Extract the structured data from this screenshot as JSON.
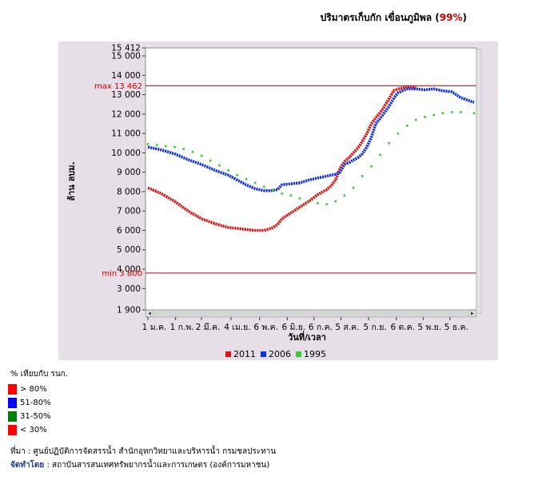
{
  "header": {
    "title_prefix": "ปริมาตรเก็บกัก เขื่อนภูมิพล (",
    "percent": "99%",
    "title_suffix": ")"
  },
  "chart_data": {
    "type": "line",
    "xlabel": "วันที่/เวลา",
    "ylabel": "ล้าน ลบม.",
    "ylim": [
      1900,
      15412
    ],
    "ytick_labels": [
      "15 412",
      "15 000",
      "14 000",
      "13 000",
      "12 000",
      "11 000",
      "10 000",
      "9 000",
      "8 000",
      "7 000",
      "6 000",
      "5 000",
      "4 000",
      "3 000",
      "1 900"
    ],
    "ytick_values": [
      15412,
      15000,
      14000,
      13000,
      12000,
      11000,
      10000,
      9000,
      8000,
      7000,
      6000,
      5000,
      4000,
      3000,
      1900
    ],
    "x_domain": [
      0,
      365
    ],
    "xtick_labels": [
      "1 ม.ค.",
      "1 ก.พ.",
      "2 มี.ค.",
      "4 เม.ย.",
      "6 พ.ค.",
      "6 มิ.ย.",
      "6 ก.ค.",
      "5 ส.ค.",
      "5 ก.ย.",
      "6 ต.ค.",
      "5 พ.ย.",
      "5 ธ.ค."
    ],
    "xtick_values": [
      0,
      31,
      60,
      93,
      125,
      156,
      186,
      216,
      247,
      278,
      308,
      338
    ],
    "reference_lines": [
      {
        "label": "max 13 462",
        "value": 13462,
        "color": "#cc0000"
      },
      {
        "label": "min 3 800",
        "value": 3800,
        "color": "#cc0000"
      }
    ],
    "series": [
      {
        "name": "2011",
        "color": "#dd1111",
        "style": "line",
        "x": [
          0,
          15,
          30,
          45,
          60,
          75,
          90,
          100,
          110,
          120,
          130,
          138,
          145,
          150,
          160,
          170,
          180,
          190,
          200,
          205,
          210,
          215,
          220,
          225,
          235,
          240,
          245,
          250,
          255,
          262,
          270,
          275,
          280,
          285,
          290,
          295,
          300
        ],
        "y": [
          8200,
          7900,
          7500,
          7000,
          6600,
          6350,
          6150,
          6100,
          6050,
          6000,
          6000,
          6100,
          6300,
          6600,
          6900,
          7200,
          7500,
          7850,
          8100,
          8300,
          8600,
          9200,
          9550,
          9750,
          10250,
          10600,
          11000,
          11500,
          11800,
          12200,
          12800,
          13200,
          13300,
          13350,
          13400,
          13400,
          13350
        ]
      },
      {
        "name": "2006",
        "color": "#1133dd",
        "style": "line",
        "x": [
          0,
          15,
          30,
          45,
          60,
          75,
          90,
          100,
          110,
          120,
          130,
          138,
          145,
          150,
          160,
          170,
          180,
          190,
          200,
          205,
          210,
          215,
          220,
          225,
          235,
          240,
          245,
          250,
          255,
          262,
          270,
          275,
          280,
          285,
          290,
          295,
          300,
          310,
          320,
          330,
          340,
          350,
          365
        ],
        "y": [
          10300,
          10150,
          9950,
          9650,
          9400,
          9100,
          8850,
          8600,
          8350,
          8150,
          8050,
          8050,
          8100,
          8350,
          8400,
          8450,
          8600,
          8700,
          8800,
          8850,
          8900,
          9000,
          9400,
          9500,
          9750,
          9950,
          10300,
          10800,
          11500,
          11900,
          12400,
          12800,
          13100,
          13200,
          13300,
          13300,
          13300,
          13250,
          13300,
          13200,
          13150,
          12850,
          12600
        ]
      },
      {
        "name": "1995",
        "color": "#33cc33",
        "style": "dots",
        "x": [
          0,
          10,
          20,
          30,
          40,
          50,
          60,
          70,
          80,
          90,
          100,
          110,
          120,
          130,
          140,
          150,
          160,
          170,
          180,
          190,
          200,
          210,
          220,
          230,
          240,
          250,
          260,
          270,
          280,
          290,
          300,
          310,
          320,
          330,
          340,
          350,
          365
        ],
        "y": [
          10450,
          10400,
          10350,
          10300,
          10200,
          10050,
          9850,
          9600,
          9350,
          9100,
          8850,
          8650,
          8450,
          8250,
          8050,
          7900,
          7800,
          7650,
          7500,
          7400,
          7350,
          7500,
          7800,
          8200,
          8800,
          9300,
          9900,
          10500,
          11000,
          11400,
          11700,
          11850,
          11950,
          12050,
          12100,
          12100,
          12050
        ]
      }
    ]
  },
  "legend": [
    {
      "label": "2011",
      "color": "#dd1111"
    },
    {
      "label": "2006",
      "color": "#1133dd"
    },
    {
      "label": "1995",
      "color": "#33cc33"
    }
  ],
  "key": {
    "heading": "% เทียบกับ รนก.",
    "items": [
      {
        "label": "> 80%",
        "color": "#ff0000"
      },
      {
        "label": "51-80%",
        "color": "#0000ff"
      },
      {
        "label": "31-50%",
        "color": "#008000"
      },
      {
        "label": "< 30%",
        "color": "#ff0000"
      }
    ]
  },
  "footer": {
    "source": "ที่มา : ศูนย์ปฏิบัติการจัดสรรน้ำ สำนักอุทกวิทยาและบริหารน้ำ กรมชลประทาน",
    "prepared_label": "จัดทำโดย",
    "prepared_by": ": สถาบันสารสนเทศทรัพยากรน้ำและการเกษตร (องค์การมหาชน)"
  }
}
